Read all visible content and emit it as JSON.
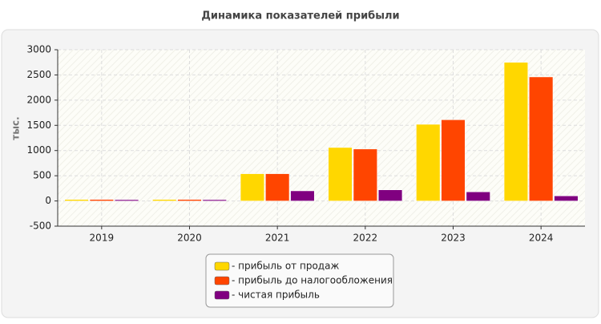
{
  "chart_data": {
    "type": "bar",
    "title": "Динамика показателей прибыли",
    "y_label": "тыс.",
    "categories": [
      "2019",
      "2020",
      "2021",
      "2022",
      "2023",
      "2024"
    ],
    "series": [
      {
        "name": "- прибыль от продаж",
        "color": "#ffd700",
        "values": [
          30,
          30,
          540,
          1060,
          1520,
          2750
        ]
      },
      {
        "name": "- прибыль до налогообложения",
        "color": "#ff4500",
        "values": [
          30,
          30,
          540,
          1030,
          1610,
          2460
        ]
      },
      {
        "name": "- чистая прибыль",
        "color": "#800080",
        "values": [
          25,
          25,
          200,
          220,
          180,
          100
        ]
      }
    ],
    "ylim": [
      -500,
      3000
    ],
    "yticks": [
      -500,
      0,
      500,
      1000,
      1500,
      2000,
      2500,
      3000
    ],
    "grid": true,
    "legend": "bottom"
  }
}
